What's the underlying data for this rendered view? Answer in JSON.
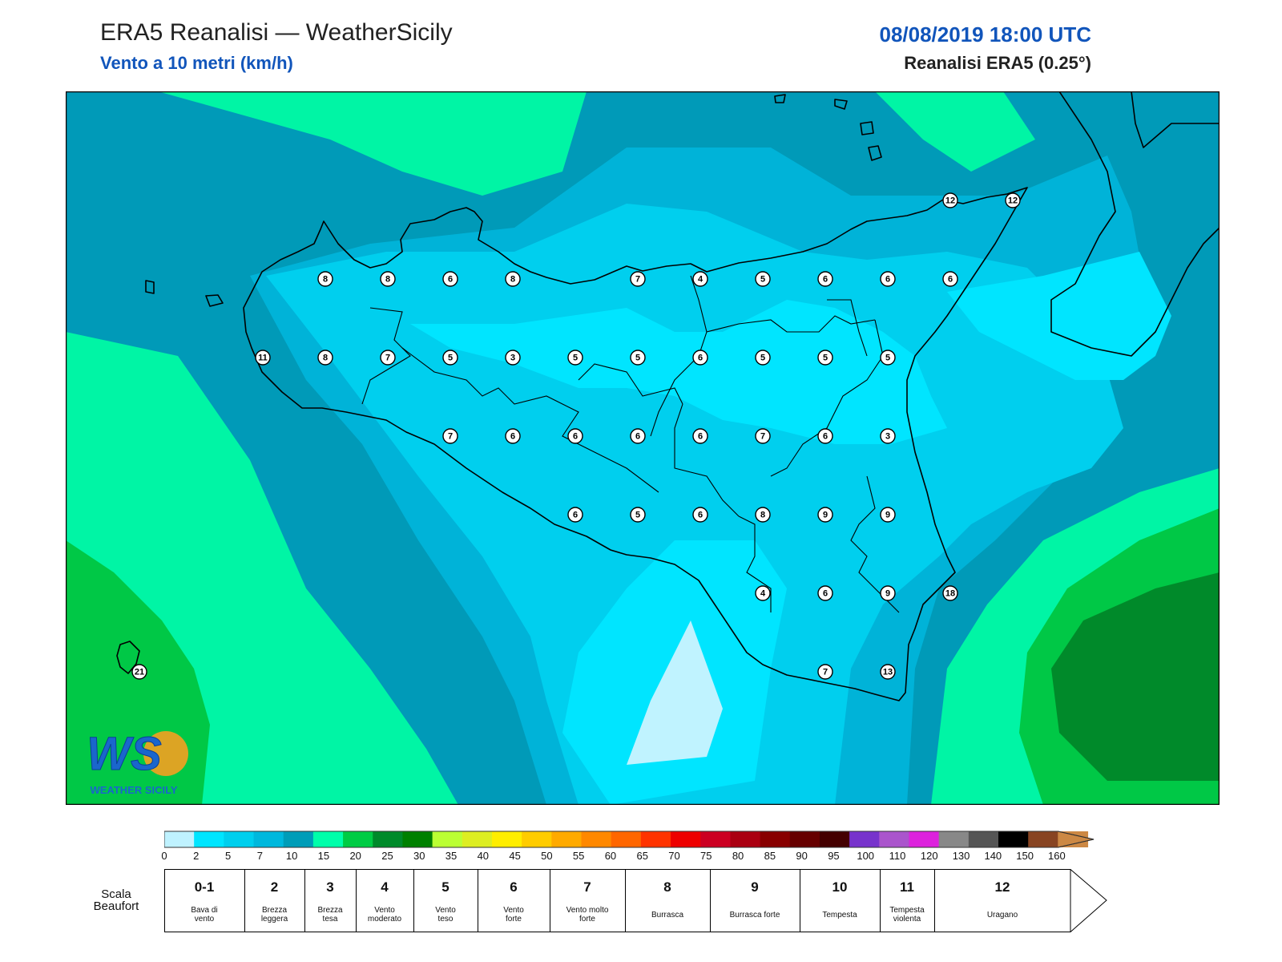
{
  "header": {
    "title": "ERA5 Reanalisi — WeatherSicily",
    "subtitle": "Vento a 10 metri (km/h)",
    "datetime": "08/08/2019 18:00 UTC",
    "model": "Reanalisi ERA5 (0.25°)"
  },
  "stations": [
    {
      "v": "8"
    },
    {
      "v": "8"
    },
    {
      "v": "6"
    },
    {
      "v": "8"
    },
    {
      "v": "7"
    },
    {
      "v": "4"
    },
    {
      "v": "5"
    },
    {
      "v": "6"
    },
    {
      "v": "6"
    },
    {
      "v": "6"
    },
    {
      "v": "11"
    },
    {
      "v": "8"
    },
    {
      "v": "7"
    },
    {
      "v": "5"
    },
    {
      "v": "3"
    },
    {
      "v": "5"
    },
    {
      "v": "5"
    },
    {
      "v": "6"
    },
    {
      "v": "5"
    },
    {
      "v": "5"
    },
    {
      "v": "5"
    },
    {
      "v": "7"
    },
    {
      "v": "6"
    },
    {
      "v": "6"
    },
    {
      "v": "6"
    },
    {
      "v": "6"
    },
    {
      "v": "7"
    },
    {
      "v": "6"
    },
    {
      "v": "3"
    },
    {
      "v": "6"
    },
    {
      "v": "5"
    },
    {
      "v": "6"
    },
    {
      "v": "8"
    },
    {
      "v": "9"
    },
    {
      "v": "9"
    },
    {
      "v": "4"
    },
    {
      "v": "6"
    },
    {
      "v": "9"
    },
    {
      "v": "18"
    },
    {
      "v": "7"
    },
    {
      "v": "13"
    },
    {
      "v": "12"
    },
    {
      "v": "12"
    },
    {
      "v": "21"
    }
  ],
  "colorbar": {
    "colors": [
      "#bff2ff",
      "#00e5ff",
      "#00cfee",
      "#00b8dd",
      "#009db8",
      "#00ffaa",
      "#00cc44",
      "#008a2a",
      "#008000",
      "#bbff33",
      "#ddee22",
      "#ffee00",
      "#ffcc00",
      "#ffaa00",
      "#ff8800",
      "#ff6600",
      "#ff3300",
      "#ee0000",
      "#cc0022",
      "#aa0011",
      "#880000",
      "#660000",
      "#440000",
      "#7733cc",
      "#aa55cc",
      "#dd22dd",
      "#888888",
      "#555555",
      "#000000",
      "#884422",
      "#cc8844"
    ],
    "ticks": [
      "0",
      "2",
      "5",
      "7",
      "10",
      "15",
      "20",
      "25",
      "30",
      "35",
      "40",
      "45",
      "50",
      "55",
      "60",
      "65",
      "70",
      "75",
      "80",
      "85",
      "90",
      "95",
      "100",
      "110",
      "120",
      "130",
      "140",
      "150",
      "160"
    ]
  },
  "beaufort": {
    "label": "Scala Beaufort",
    "cells": [
      {
        "num": "0-1",
        "name": "Bava di vento"
      },
      {
        "num": "2",
        "name": "Brezza leggera"
      },
      {
        "num": "3",
        "name": "Brezza tesa"
      },
      {
        "num": "4",
        "name": "Vento moderato"
      },
      {
        "num": "5",
        "name": "Vento teso"
      },
      {
        "num": "6",
        "name": "Vento forte"
      },
      {
        "num": "7",
        "name": "Vento molto forte"
      },
      {
        "num": "8",
        "name": "Burrasca"
      },
      {
        "num": "9",
        "name": "Burrasca forte"
      },
      {
        "num": "10",
        "name": "Tempesta"
      },
      {
        "num": "11",
        "name": "Tempesta violenta"
      },
      {
        "num": "12",
        "name": "Uragano"
      }
    ]
  },
  "logo": {
    "letters": "WS",
    "text": "WEATHER SICILY"
  }
}
